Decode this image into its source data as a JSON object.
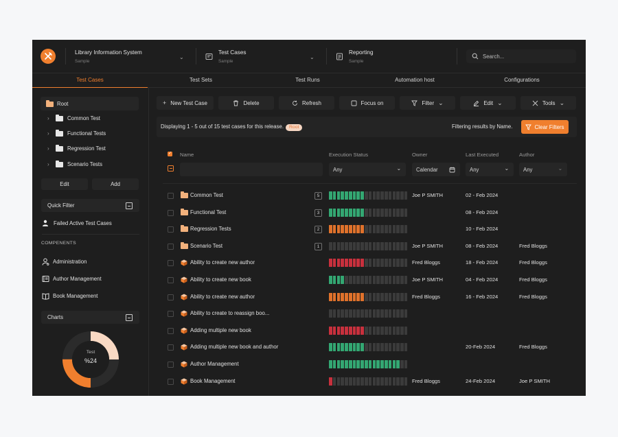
{
  "header": {
    "project": {
      "title": "Library Information System",
      "subtitle": "Sample"
    },
    "module": {
      "title": "Test Cases",
      "subtitle": "Sample"
    },
    "report": {
      "title": "Reporting",
      "subtitle": "Sample"
    },
    "search_placeholder": "Search..."
  },
  "tabs": [
    "Test Cases",
    "Test Sets",
    "Test Runs",
    "Automation host",
    "Configurations"
  ],
  "sidebar": {
    "root": "Root",
    "folders": [
      "Common Test",
      "Functional Tests",
      "Regression Test",
      "Scenario Tests"
    ],
    "edit_label": "Edit",
    "add_label": "Add",
    "quick_filter": "Quick Filter",
    "failed_filter": "Failed Active Test Cases",
    "components_heading": "COMPENENTS",
    "components": [
      "Administration",
      "Author Management",
      "Book Management"
    ],
    "charts_label": "Charts",
    "donut": {
      "label": "Test",
      "value_text": "%24",
      "value": 24
    }
  },
  "toolbar": {
    "new_label": "New Test Case",
    "delete_label": "Delete",
    "refresh_label": "Refresh",
    "focus_label": "Focus on",
    "filter_label": "Filter",
    "edit_label": "Edit",
    "tools_label": "Tools"
  },
  "info": {
    "text": "Displaying 1 - 5 out of 15 test cases for this release.",
    "pill": "Root",
    "filtering": "Filtering results by Name.",
    "clear_label": "Clear Filters"
  },
  "table": {
    "headers": {
      "name": "Name",
      "status": "Execution Status",
      "owner": "Owner",
      "executed": "Last Executed",
      "author": "Author"
    },
    "filters": {
      "status": "Any",
      "owner": "Calendar",
      "executed": "Any",
      "author": "Any"
    },
    "rows": [
      {
        "type": "folder",
        "name": "Common Test",
        "count": "5",
        "bar_color": "#33a772",
        "filled": 9,
        "owner": "Joe P SMITH",
        "executed": "02 - Feb 2024",
        "author": ""
      },
      {
        "type": "folder",
        "name": "Functional Test",
        "count": "3",
        "bar_color": "#33a772",
        "filled": 9,
        "owner": "",
        "executed": "08 - Feb 2024",
        "author": ""
      },
      {
        "type": "folder",
        "name": "Regression Tests",
        "count": "2",
        "bar_color": "#e0722b",
        "filled": 9,
        "owner": "",
        "executed": "10 - Feb 2024",
        "author": ""
      },
      {
        "type": "folder",
        "name": "Scenario Test",
        "count": "1",
        "bar_color": "#33a772",
        "filled": 0,
        "owner": "Joe P SMITH",
        "executed": "08 - Feb 2024",
        "author": "Fred Bloggs"
      },
      {
        "type": "case",
        "name": "Ability to create new author",
        "count": "",
        "bar_color": "#c8303d",
        "filled": 9,
        "owner": "Fred Bloggs",
        "executed": "18 - Feb 2024",
        "author": "Fred Bloggs"
      },
      {
        "type": "case",
        "name": "Ability to create new book",
        "count": "",
        "bar_color": "#33a772",
        "filled": 4,
        "owner": "Joe P SMITH",
        "executed": "04 - Feb 2024",
        "author": "Fred Bloggs"
      },
      {
        "type": "case",
        "name": "Ability to create new author",
        "count": "",
        "bar_color": "#e0722b",
        "filled": 9,
        "owner": "Fred Bloggs",
        "executed": "16 - Feb 2024",
        "author": "Fred Bloggs"
      },
      {
        "type": "case",
        "name": "Ability to create to reassign boo...",
        "count": "",
        "bar_color": "#33a772",
        "filled": 0,
        "owner": "",
        "executed": "",
        "author": ""
      },
      {
        "type": "case",
        "name": "Adding multiple new book",
        "count": "",
        "bar_color": "#c8303d",
        "filled": 9,
        "owner": "",
        "executed": "",
        "author": ""
      },
      {
        "type": "case",
        "name": "Adding multiple new book and author",
        "count": "",
        "bar_color": "#33a772",
        "filled": 9,
        "owner": "",
        "executed": "20-Feb 2024",
        "author": "Fred Bloggs"
      },
      {
        "type": "case",
        "name": "Author Management",
        "count": "",
        "bar_color": "#33a772",
        "filled": 18,
        "owner": "",
        "executed": "",
        "author": ""
      },
      {
        "type": "case",
        "name": "Book Management",
        "count": "",
        "bar_color": "#c8303d",
        "filled": 1,
        "owner": "Fred Bloggs",
        "executed": "24-Feb 2024",
        "author": "Joe P SMITH"
      }
    ]
  },
  "colors": {
    "accent": "#f07f2e",
    "success": "#33a772",
    "warning": "#e0722b",
    "danger": "#c8303d",
    "empty": "#3b3b3b"
  }
}
